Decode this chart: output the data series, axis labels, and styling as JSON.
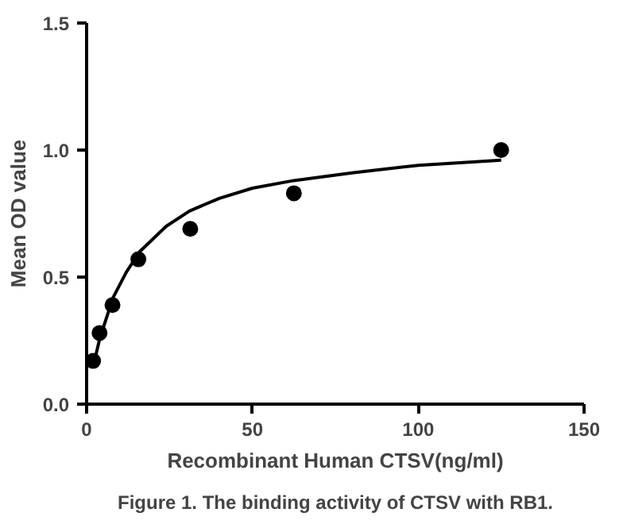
{
  "chart_data": {
    "type": "scatter",
    "xlabel": "Recombinant Human CTSV(ng/ml)",
    "ylabel": "Mean OD value",
    "annotations": [
      "Figure 1. The binding activity of CTSV with RB1."
    ],
    "xlim": [
      0,
      150
    ],
    "xticks": [
      0,
      50,
      100,
      150
    ],
    "ylim": [
      0,
      1.5
    ],
    "yticks": [
      {
        "value": 0,
        "label": "0.0"
      },
      {
        "value": 0.5,
        "label": "0.5"
      },
      {
        "value": 1,
        "label": "1.0"
      },
      {
        "value": 1.5,
        "label": "1.5"
      }
    ],
    "grid": false,
    "series": [
      {
        "marker": "circle",
        "color": "#000000",
        "x": [
          1.95,
          3.9,
          7.8,
          15.6,
          31.25,
          62.5,
          125
        ],
        "values": [
          0.17,
          0.28,
          0.39,
          0.57,
          0.69,
          0.83,
          1.0
        ]
      },
      {
        "type": "line",
        "color": "#000000",
        "x": [
          2,
          4,
          8,
          12,
          16,
          24,
          31,
          40,
          50,
          62.5,
          80,
          100,
          125
        ],
        "values": [
          0.15,
          0.26,
          0.42,
          0.52,
          0.6,
          0.7,
          0.76,
          0.81,
          0.85,
          0.88,
          0.91,
          0.94,
          0.96
        ]
      }
    ]
  }
}
